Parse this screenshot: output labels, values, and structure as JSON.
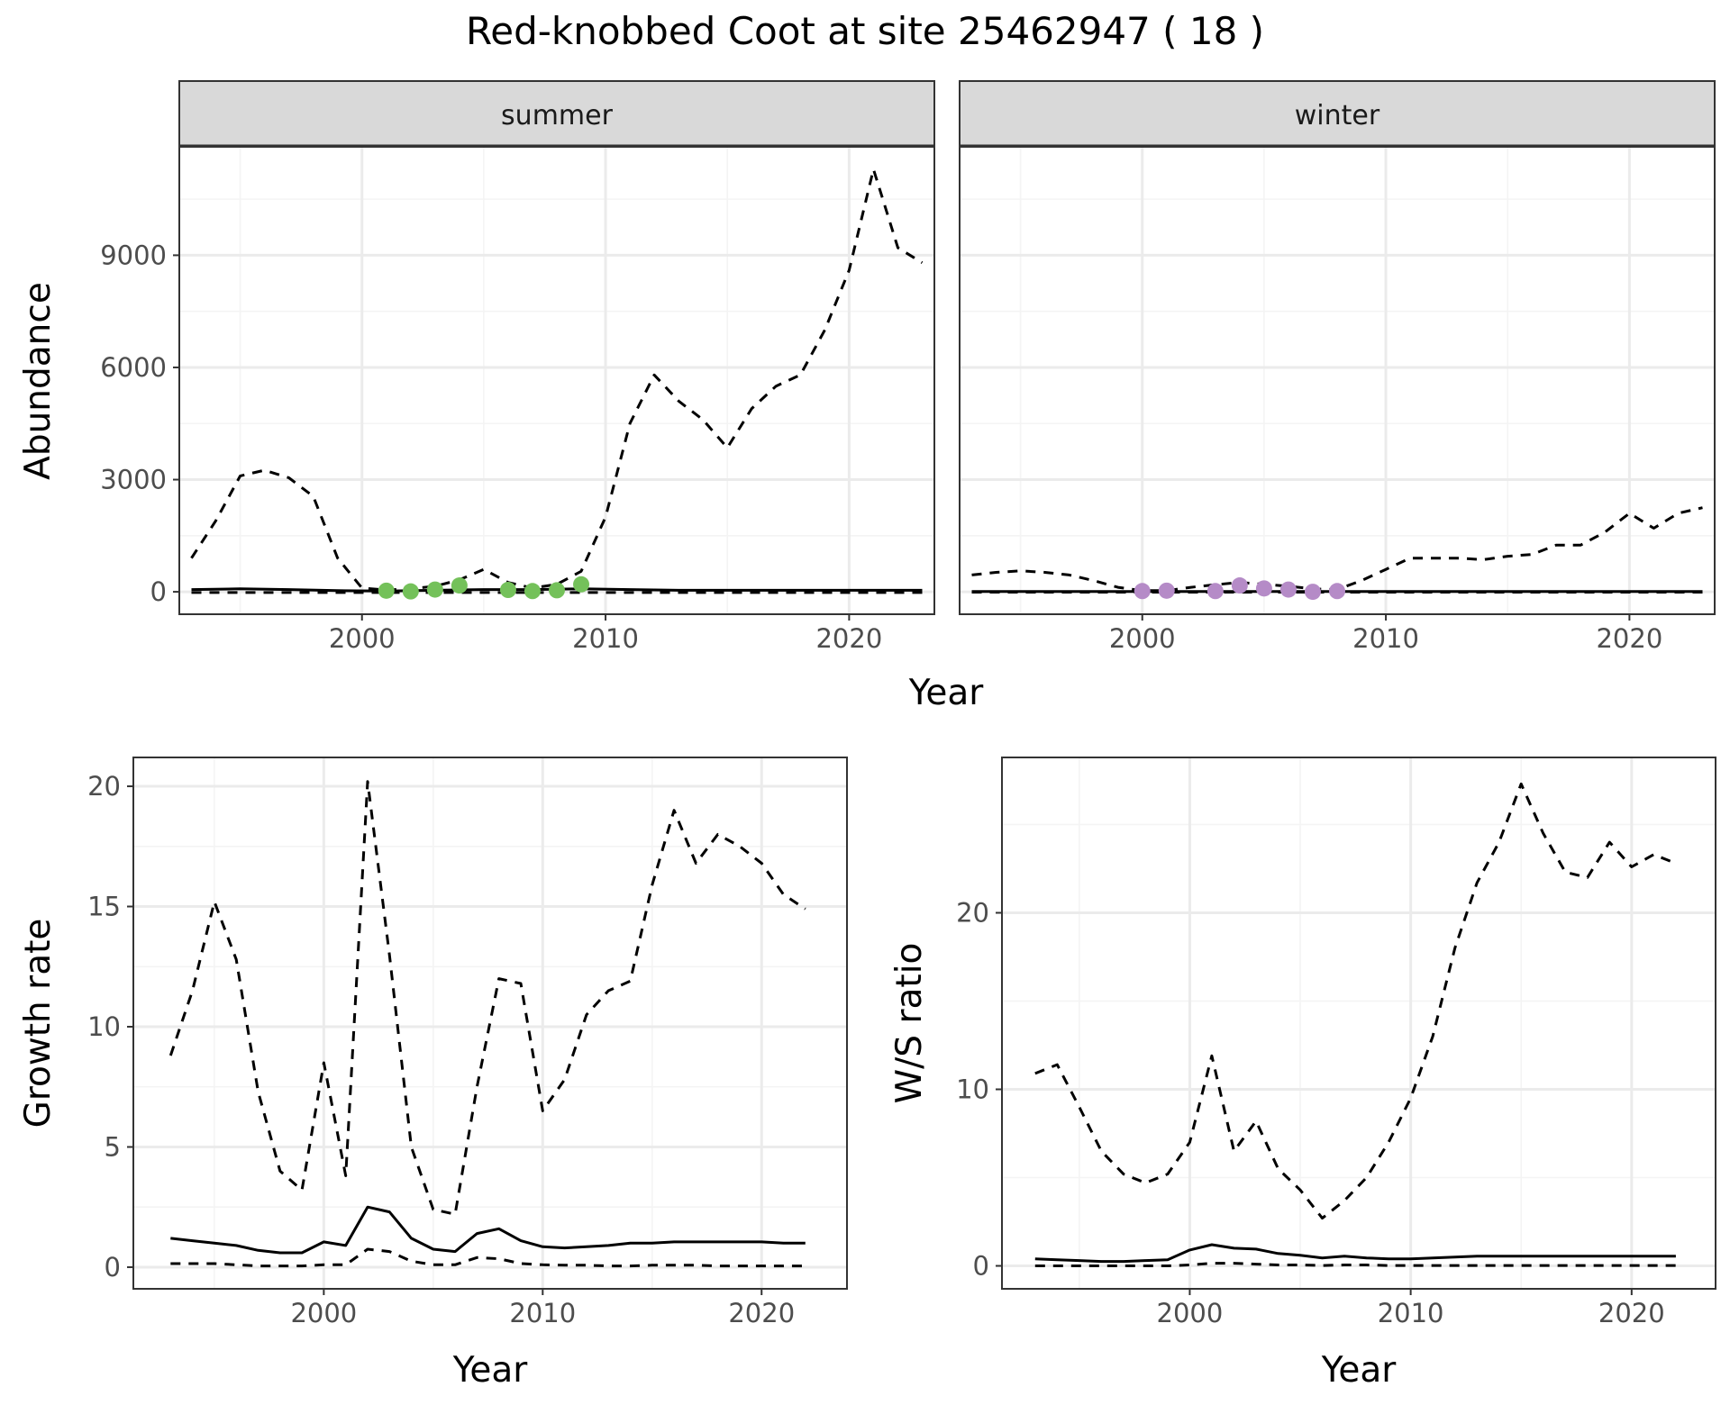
{
  "title": "Red-knobbed Coot at site 25462947 ( 18 )",
  "colors": {
    "summer_points": "#74c15a",
    "winter_points": "#b58bc7",
    "strip_fill": "#d9d9d9",
    "strip_border": "#333333",
    "grid_major": "#ebebeb",
    "grid_minor": "#f4f4f4",
    "line": "#000000",
    "axis_text": "#4d4d4d"
  },
  "chart_data": [
    {
      "type": "line",
      "id": "abundance",
      "ylabel": "Abundance",
      "xlabel": "Year",
      "xlim": [
        1992.5,
        2023.5
      ],
      "ylim": [
        -600,
        11900
      ],
      "x_ticks": [
        2000,
        2010,
        2020
      ],
      "y_ticks": [
        0,
        3000,
        6000,
        9000
      ],
      "facets": [
        {
          "name": "summer",
          "series": [
            {
              "style": "solid",
              "x": [
                1993,
                1995,
                1997,
                1999,
                2001,
                2003,
                2005,
                2007,
                2009,
                2011,
                2013,
                2015,
                2017,
                2019,
                2021,
                2023
              ],
              "y": [
                60,
                80,
                60,
                30,
                20,
                40,
                60,
                60,
                80,
                60,
                40,
                40,
                40,
                40,
                40,
                40
              ]
            },
            {
              "style": "dashed",
              "x": [
                1993,
                1995,
                1997,
                1999,
                2001,
                2003,
                2005,
                2007,
                2009,
                2011,
                2013,
                2015,
                2017,
                2019,
                2021,
                2023
              ],
              "y": [
                -20,
                -20,
                -20,
                -20,
                -20,
                -20,
                -20,
                -20,
                -20,
                -20,
                -20,
                -20,
                -20,
                -20,
                -20,
                -20
              ]
            },
            {
              "style": "dashed",
              "x": [
                1993,
                1994,
                1995,
                1996,
                1997,
                1998,
                1999,
                2000,
                2001,
                2002,
                2003,
                2004,
                2005,
                2006,
                2007,
                2008,
                2009,
                2010,
                2011,
                2012,
                2013,
                2014,
                2015,
                2016,
                2017,
                2018,
                2019,
                2020,
                2021,
                2022,
                2023
              ],
              "y": [
                900,
                1900,
                3100,
                3250,
                3050,
                2550,
                900,
                100,
                50,
                80,
                150,
                320,
                600,
                250,
                100,
                200,
                550,
                2000,
                4500,
                5800,
                5100,
                4600,
                3850,
                4900,
                5500,
                5800,
                7000,
                8600,
                11300,
                9200,
                8800
              ]
            }
          ],
          "points": {
            "x": [
              2001,
              2002,
              2003,
              2004,
              2006,
              2007,
              2008,
              2009
            ],
            "y": [
              30,
              10,
              60,
              170,
              50,
              20,
              40,
              200
            ]
          }
        },
        {
          "name": "winter",
          "series": [
            {
              "style": "solid",
              "x": [
                1993,
                1995,
                1997,
                1999,
                2001,
                2003,
                2005,
                2007,
                2009,
                2011,
                2013,
                2015,
                2017,
                2019,
                2021,
                2023
              ],
              "y": [
                10,
                10,
                10,
                10,
                10,
                10,
                10,
                10,
                10,
                10,
                10,
                10,
                10,
                10,
                10,
                10
              ]
            },
            {
              "style": "dashed",
              "x": [
                1993,
                1995,
                1997,
                1999,
                2001,
                2003,
                2005,
                2007,
                2009,
                2011,
                2013,
                2015,
                2017,
                2019,
                2021,
                2023
              ],
              "y": [
                -10,
                -10,
                -10,
                -10,
                -10,
                -10,
                -10,
                -10,
                -10,
                -10,
                -10,
                -10,
                -10,
                -10,
                -10,
                -10
              ]
            },
            {
              "style": "dashed",
              "x": [
                1993,
                1994,
                1995,
                1996,
                1997,
                1998,
                1999,
                2000,
                2001,
                2002,
                2003,
                2004,
                2005,
                2006,
                2007,
                2008,
                2009,
                2010,
                2011,
                2012,
                2013,
                2014,
                2015,
                2016,
                2017,
                2018,
                2019,
                2020,
                2021,
                2022,
                2023
              ],
              "y": [
                450,
                520,
                560,
                520,
                450,
                300,
                120,
                30,
                30,
                120,
                190,
                250,
                200,
                150,
                80,
                60,
                300,
                600,
                900,
                900,
                900,
                860,
                950,
                1000,
                1250,
                1250,
                1600,
                2100,
                1700,
                2100,
                2250
              ]
            }
          ],
          "points": {
            "x": [
              2000,
              2001,
              2003,
              2004,
              2005,
              2006,
              2007,
              2008
            ],
            "y": [
              20,
              30,
              20,
              170,
              90,
              60,
              0,
              20
            ]
          }
        }
      ]
    },
    {
      "type": "line",
      "id": "growth",
      "ylabel": "Growth rate",
      "xlabel": "Year",
      "xlim": [
        1991.3,
        2023.9
      ],
      "ylim": [
        -0.9,
        21.2
      ],
      "x_ticks": [
        2000,
        2010,
        2020
      ],
      "y_ticks": [
        0,
        5,
        10,
        15,
        20
      ],
      "series": [
        {
          "style": "solid",
          "x": [
            1993,
            1994,
            1995,
            1996,
            1997,
            1998,
            1999,
            2000,
            2001,
            2002,
            2003,
            2004,
            2005,
            2006,
            2007,
            2008,
            2009,
            2010,
            2011,
            2012,
            2013,
            2014,
            2015,
            2016,
            2017,
            2018,
            2019,
            2020,
            2021,
            2022
          ],
          "y": [
            1.2,
            1.1,
            1.0,
            0.9,
            0.7,
            0.6,
            0.6,
            1.05,
            0.9,
            2.5,
            2.3,
            1.2,
            0.75,
            0.65,
            1.4,
            1.6,
            1.1,
            0.85,
            0.8,
            0.85,
            0.9,
            1.0,
            1.0,
            1.05,
            1.05,
            1.05,
            1.05,
            1.05,
            1.0,
            1.0
          ]
        },
        {
          "style": "dashed",
          "x": [
            1993,
            1994,
            1995,
            1996,
            1997,
            1998,
            1999,
            2000,
            2001,
            2002,
            2003,
            2004,
            2005,
            2006,
            2007,
            2008,
            2009,
            2010,
            2011,
            2012,
            2013,
            2014,
            2015,
            2016,
            2017,
            2018,
            2019,
            2020,
            2021,
            2022
          ],
          "y": [
            0.15,
            0.15,
            0.15,
            0.1,
            0.05,
            0.05,
            0.05,
            0.1,
            0.1,
            0.75,
            0.65,
            0.25,
            0.1,
            0.1,
            0.4,
            0.35,
            0.15,
            0.1,
            0.08,
            0.08,
            0.05,
            0.05,
            0.08,
            0.08,
            0.08,
            0.05,
            0.05,
            0.05,
            0.05,
            0.05
          ]
        },
        {
          "style": "dashed",
          "x": [
            1993,
            1994,
            1995,
            1996,
            1997,
            1998,
            1999,
            2000,
            2001,
            2002,
            2003,
            2004,
            2005,
            2006,
            2007,
            2008,
            2009,
            2010,
            2011,
            2012,
            2013,
            2014,
            2015,
            2016,
            2017,
            2018,
            2019,
            2020,
            2021,
            2022
          ],
          "y": [
            8.8,
            11.5,
            15.2,
            12.8,
            7.3,
            4.0,
            3.2,
            8.5,
            3.8,
            20.2,
            13.0,
            5.0,
            2.4,
            2.2,
            7.5,
            12.0,
            11.8,
            6.5,
            7.8,
            10.5,
            11.5,
            11.9,
            15.9,
            19.0,
            16.8,
            18.0,
            17.5,
            16.8,
            15.5,
            14.9
          ]
        }
      ]
    },
    {
      "type": "line",
      "id": "ws_ratio",
      "ylabel": "W/S ratio",
      "xlabel": "Year",
      "xlim": [
        1991.5,
        2023.8
      ],
      "ylim": [
        -1.3,
        28.8
      ],
      "x_ticks": [
        2000,
        2010,
        2020
      ],
      "y_ticks": [
        0,
        10,
        20
      ],
      "series": [
        {
          "style": "solid",
          "x": [
            1993,
            1994,
            1995,
            1996,
            1997,
            1998,
            1999,
            2000,
            2001,
            2002,
            2003,
            2004,
            2005,
            2006,
            2007,
            2008,
            2009,
            2010,
            2011,
            2012,
            2013,
            2014,
            2015,
            2016,
            2017,
            2018,
            2019,
            2020,
            2021,
            2022
          ],
          "y": [
            0.4,
            0.35,
            0.3,
            0.25,
            0.25,
            0.3,
            0.35,
            0.9,
            1.2,
            1.0,
            0.95,
            0.7,
            0.6,
            0.45,
            0.55,
            0.45,
            0.4,
            0.4,
            0.45,
            0.5,
            0.55,
            0.55,
            0.55,
            0.55,
            0.55,
            0.55,
            0.55,
            0.55,
            0.55,
            0.55
          ]
        },
        {
          "style": "dashed",
          "x": [
            1993,
            1994,
            1995,
            1996,
            1997,
            1998,
            1999,
            2000,
            2001,
            2002,
            2003,
            2004,
            2005,
            2006,
            2007,
            2008,
            2009,
            2010,
            2011,
            2012,
            2013,
            2014,
            2015,
            2016,
            2017,
            2018,
            2019,
            2020,
            2021,
            2022
          ],
          "y": [
            0.0,
            0.0,
            0.0,
            0.0,
            0.0,
            0.0,
            0.0,
            0.05,
            0.15,
            0.15,
            0.1,
            0.05,
            0.05,
            0.02,
            0.05,
            0.05,
            0.02,
            0.02,
            0.02,
            0.02,
            0.02,
            0.02,
            0.02,
            0.02,
            0.02,
            0.02,
            0.02,
            0.02,
            0.02,
            0.02
          ]
        },
        {
          "style": "dashed",
          "x": [
            1993,
            1994,
            1995,
            1996,
            1997,
            1998,
            1999,
            2000,
            2001,
            2002,
            2003,
            2004,
            2005,
            2006,
            2007,
            2008,
            2009,
            2010,
            2011,
            2012,
            2013,
            2014,
            2015,
            2016,
            2017,
            2018,
            2019,
            2020,
            2021,
            2022
          ],
          "y": [
            10.9,
            11.4,
            9.0,
            6.5,
            5.2,
            4.7,
            5.2,
            7.0,
            11.9,
            6.5,
            8.2,
            5.5,
            4.3,
            2.7,
            3.7,
            5.0,
            7.0,
            9.5,
            13.0,
            18.0,
            21.7,
            24.0,
            27.3,
            24.5,
            22.3,
            22.0,
            24.0,
            22.6,
            23.3,
            22.8
          ]
        }
      ]
    }
  ]
}
